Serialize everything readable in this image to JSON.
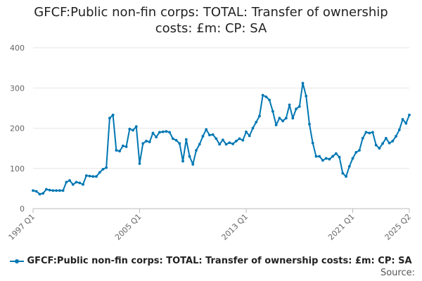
{
  "title_line1": "GFCF:Public non-fin corps: TOTAL: Transfer of ownership",
  "title_line2": "costs: £m: CP: SA",
  "source_label": "Source:",
  "colors": {
    "series": "#0077b3",
    "grid": "#e6e6e6",
    "axis": "#bbbbbb"
  },
  "chart_data": {
    "type": "line",
    "title": "GFCF:Public non-fin corps: TOTAL: Transfer of ownership costs: £m: CP: SA",
    "xlabel": "",
    "ylabel": "",
    "ylim": [
      0,
      400
    ],
    "y_ticks": [
      0,
      100,
      200,
      300,
      400
    ],
    "x_tick_labels": [
      "1997 Q1",
      "2005 Q1",
      "2013 Q1",
      "2021 Q1",
      "2025 Q2"
    ],
    "x_tick_index": [
      0,
      32,
      64,
      96,
      113
    ],
    "grid": true,
    "legend": "bottom",
    "series": [
      {
        "name": "GFCF:Public non-fin corps: TOTAL: Transfer of ownership costs: £m: CP: SA",
        "values": [
          45,
          43,
          36,
          38,
          48,
          46,
          45,
          45,
          45,
          45,
          66,
          70,
          60,
          66,
          64,
          60,
          82,
          81,
          80,
          80,
          90,
          98,
          102,
          225,
          233,
          145,
          143,
          156,
          154,
          198,
          195,
          204,
          112,
          162,
          168,
          166,
          188,
          178,
          190,
          191,
          192,
          190,
          174,
          170,
          162,
          118,
          172,
          130,
          110,
          145,
          160,
          180,
          197,
          183,
          184,
          174,
          160,
          171,
          160,
          164,
          161,
          168,
          174,
          170,
          191,
          181,
          200,
          215,
          230,
          282,
          278,
          270,
          242,
          208,
          225,
          218,
          225,
          258,
          225,
          248,
          254,
          312,
          280,
          210,
          163,
          130,
          130,
          120,
          125,
          123,
          130,
          137,
          128,
          88,
          80,
          105,
          125,
          140,
          145,
          175,
          190,
          188,
          190,
          158,
          150,
          162,
          175,
          163,
          168,
          180,
          196,
          222,
          212,
          233
        ]
      }
    ]
  }
}
